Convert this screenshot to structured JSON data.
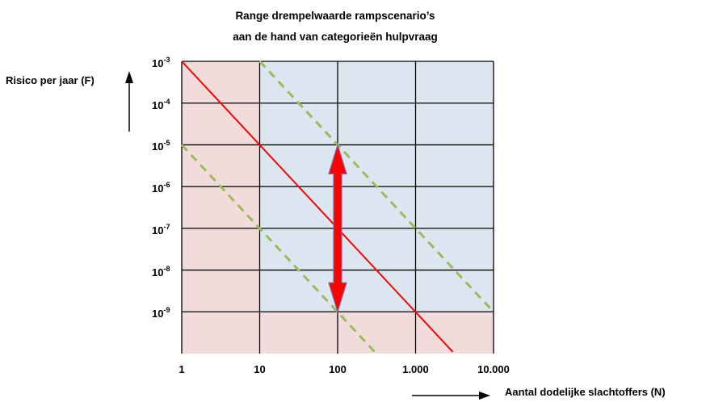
{
  "chart_data": {
    "type": "line",
    "title_line1": "Range drempelwaarde rampscenario’s",
    "title_line2": "aan de hand van categorieën hulpvraag",
    "xlabel": "Aantal dodelijke slachtoffers (N)",
    "ylabel": "Risico per jaar (F)",
    "x_scale": "log",
    "y_scale": "log",
    "xlim": [
      1,
      10000
    ],
    "ylim": [
      1e-10,
      0.001
    ],
    "x_ticks": [
      {
        "value": 1,
        "label": "1"
      },
      {
        "value": 10,
        "label": "10"
      },
      {
        "value": 100,
        "label": "100"
      },
      {
        "value": 1000,
        "label": "1.000"
      },
      {
        "value": 10000,
        "label": "10.000"
      }
    ],
    "y_ticks": [
      {
        "value": 0.001,
        "base": "10",
        "exp": "-3"
      },
      {
        "value": 0.0001,
        "base": "10",
        "exp": "-4"
      },
      {
        "value": 1e-05,
        "base": "10",
        "exp": "-5"
      },
      {
        "value": 1e-06,
        "base": "10",
        "exp": "-6"
      },
      {
        "value": 1e-07,
        "base": "10",
        "exp": "-7"
      },
      {
        "value": 1e-08,
        "base": "10",
        "exp": "-8"
      },
      {
        "value": 1e-09,
        "base": "10",
        "exp": "-9"
      }
    ],
    "grid": true,
    "regions": [
      {
        "fill": "#f2dcdb",
        "x": [
          1,
          10000
        ],
        "y": [
          1e-10,
          0.001
        ]
      },
      {
        "fill": "#dce6f1",
        "x": [
          10,
          10000
        ],
        "y": [
          1e-09,
          0.001
        ]
      }
    ],
    "series": [
      {
        "style": "solid",
        "color": "#ff0000",
        "points": [
          [
            1,
            0.001
          ],
          [
            3000,
            1.1e-10
          ]
        ]
      },
      {
        "style": "dashed",
        "color": "#9bbb59",
        "points": [
          [
            10,
            0.001
          ],
          [
            10000,
            1e-09
          ]
        ]
      },
      {
        "style": "dashed",
        "color": "#9bbb59",
        "points": [
          [
            1,
            1e-05
          ],
          [
            300,
            1.1e-10
          ]
        ]
      }
    ],
    "annotations": [
      {
        "type": "double-arrow",
        "color": "#ff0000",
        "outline": "#8064a2",
        "x": 100,
        "y": [
          1e-05,
          1e-09
        ]
      }
    ],
    "decorations": [
      {
        "type": "axis-arrow",
        "direction": "up",
        "color": "#000000"
      },
      {
        "type": "axis-arrow",
        "direction": "right",
        "color": "#000000"
      }
    ]
  }
}
